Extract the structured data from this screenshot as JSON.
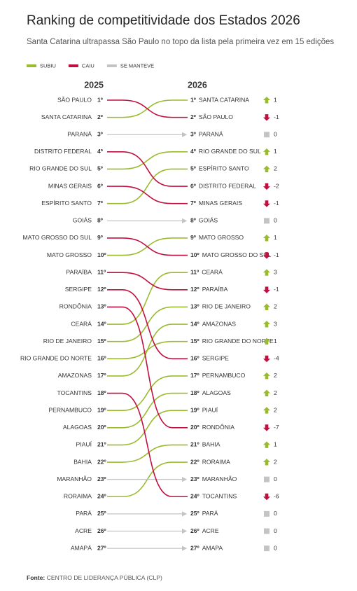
{
  "chart_data": {
    "type": "slope",
    "title": "Ranking de competitividade dos Estados 2026",
    "subtitle": "Santa Catarina ultrapassa São Paulo no topo da lista pela primeira vez em 15 edições",
    "legend": [
      {
        "label": "SUBIU",
        "color": "#9bbb2e"
      },
      {
        "label": "CAIU",
        "color": "#c0103f"
      },
      {
        "label": "SE MANTEVE",
        "color": "#c4c4c4"
      }
    ],
    "left_header": "2025",
    "right_header": "2026",
    "left": [
      {
        "name": "SÃO PAULO",
        "rank": "1º"
      },
      {
        "name": "SANTA CATARINA",
        "rank": "2º"
      },
      {
        "name": "PARANÁ",
        "rank": "3º"
      },
      {
        "name": "DISTRITO FEDERAL",
        "rank": "4º"
      },
      {
        "name": "RIO GRANDE DO SUL",
        "rank": "5º"
      },
      {
        "name": "MINAS GERAIS",
        "rank": "6º"
      },
      {
        "name": "ESPÍRITO SANTO",
        "rank": "7º"
      },
      {
        "name": "GOIÁS",
        "rank": "8º"
      },
      {
        "name": "MATO GROSSO DO SUL",
        "rank": "9º"
      },
      {
        "name": "MATO GROSSO",
        "rank": "10º"
      },
      {
        "name": "PARAÍBA",
        "rank": "11º"
      },
      {
        "name": "SERGIPE",
        "rank": "12º"
      },
      {
        "name": "RONDÔNIA",
        "rank": "13º"
      },
      {
        "name": "CEARÁ",
        "rank": "14º"
      },
      {
        "name": "RIO DE JANEIRO",
        "rank": "15º"
      },
      {
        "name": "RIO GRANDE DO NORTE",
        "rank": "16º"
      },
      {
        "name": "AMAZONAS",
        "rank": "17º"
      },
      {
        "name": "TOCANTINS",
        "rank": "18º"
      },
      {
        "name": "PERNAMBUCO",
        "rank": "19º"
      },
      {
        "name": "ALAGOAS",
        "rank": "20º"
      },
      {
        "name": "PIAUÍ",
        "rank": "21º"
      },
      {
        "name": "BAHIA",
        "rank": "22º"
      },
      {
        "name": "MARANHÃO",
        "rank": "23º"
      },
      {
        "name": "RORAIMA",
        "rank": "24º"
      },
      {
        "name": "PARÁ",
        "rank": "25º"
      },
      {
        "name": "ACRE",
        "rank": "26º"
      },
      {
        "name": "AMAPÁ",
        "rank": "27º"
      }
    ],
    "right": [
      {
        "rank": "1º",
        "name": "SANTA CATARINA",
        "change": 1
      },
      {
        "rank": "2º",
        "name": "SÃO PAULO",
        "change": -1
      },
      {
        "rank": "3º",
        "name": "PARANÁ",
        "change": 0
      },
      {
        "rank": "4º",
        "name": "RIO GRANDE DO SUL",
        "change": 1
      },
      {
        "rank": "5º",
        "name": "ESPÍRITO SANTO",
        "change": 2
      },
      {
        "rank": "6º",
        "name": "DISTRITO FEDERAL",
        "change": -2
      },
      {
        "rank": "7º",
        "name": "MINAS GERAIS",
        "change": -1
      },
      {
        "rank": "8º",
        "name": "GOIÁS",
        "change": 0
      },
      {
        "rank": "9º",
        "name": "MATO GROSSO",
        "change": 1
      },
      {
        "rank": "10º",
        "name": "MATO GROSSO DO SUL",
        "change": -1
      },
      {
        "rank": "11º",
        "name": "CEARÁ",
        "change": 3
      },
      {
        "rank": "12º",
        "name": "PARAÍBA",
        "change": -1
      },
      {
        "rank": "13º",
        "name": "RIO DE JANEIRO",
        "change": 2
      },
      {
        "rank": "14º",
        "name": "AMAZONAS",
        "change": 3
      },
      {
        "rank": "15º",
        "name": "RIO GRANDE DO NORTE",
        "change": 1
      },
      {
        "rank": "16º",
        "name": "SERGIPE",
        "change": -4
      },
      {
        "rank": "17º",
        "name": "PERNAMBUCO",
        "change": 2
      },
      {
        "rank": "18º",
        "name": "ALAGOAS",
        "change": 2
      },
      {
        "rank": "19º",
        "name": "PIAUÍ",
        "change": 2
      },
      {
        "rank": "20º",
        "name": "RONDÔNIA",
        "change": -7
      },
      {
        "rank": "21º",
        "name": "BAHIA",
        "change": 1
      },
      {
        "rank": "22º",
        "name": "RORAIMA",
        "change": 2
      },
      {
        "rank": "23º",
        "name": "MARANHÃO",
        "change": 0
      },
      {
        "rank": "24º",
        "name": "TOCANTINS",
        "change": -6
      },
      {
        "rank": "25º",
        "name": "PARÁ",
        "change": 0
      },
      {
        "rank": "26º",
        "name": "ACRE",
        "change": 0
      },
      {
        "rank": "27º",
        "name": "AMAPA",
        "change": 0
      }
    ],
    "source_label": "Fonte:",
    "source": "CENTRO DE LIDERANÇA PÚBLICA (CLP)"
  }
}
